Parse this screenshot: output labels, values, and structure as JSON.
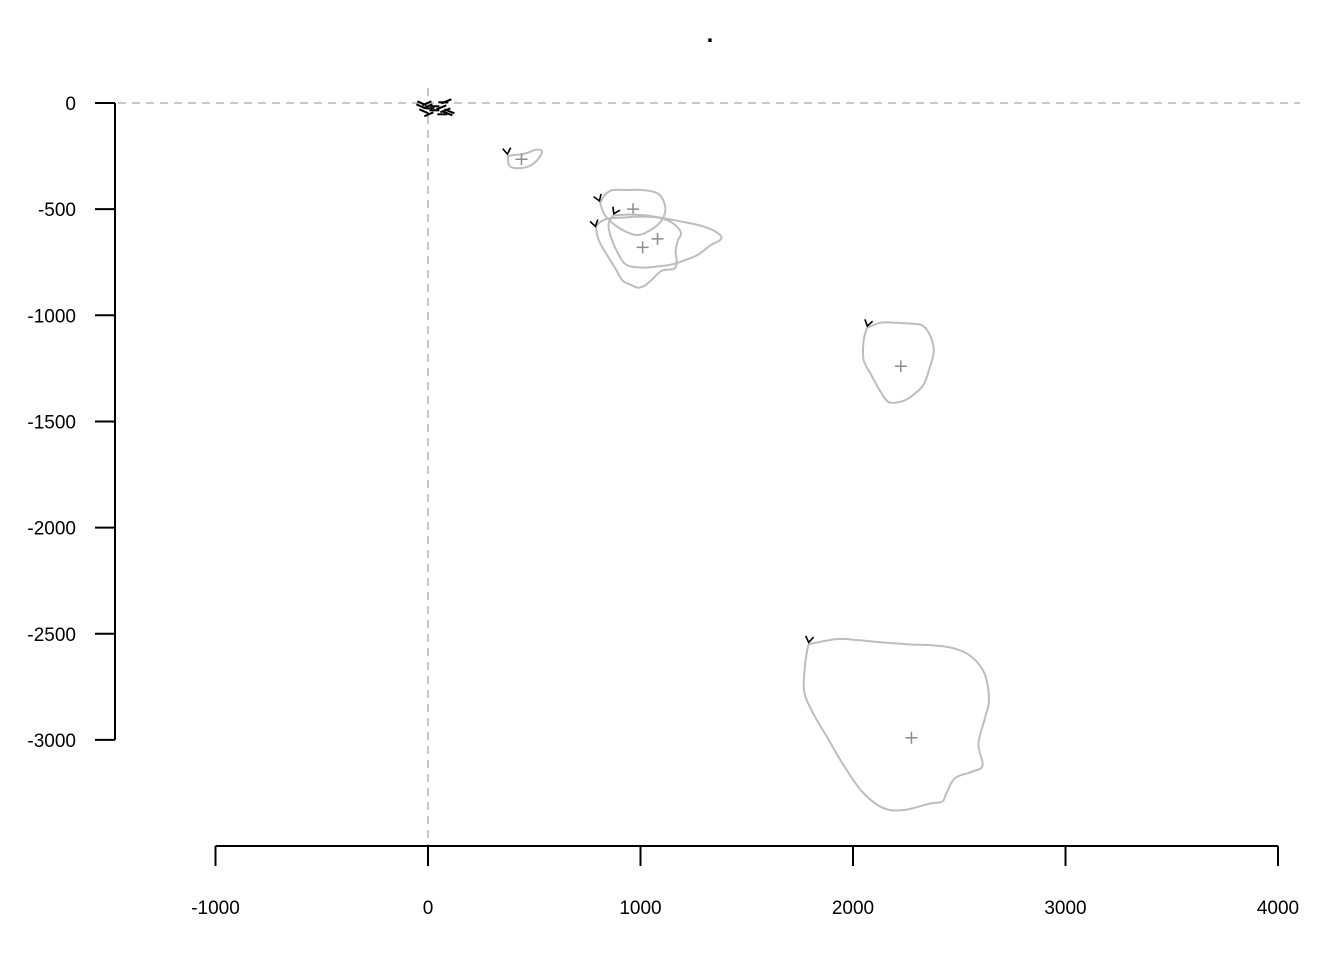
{
  "chart_data": {
    "type": "scatter",
    "title": ".",
    "xlabel": "",
    "ylabel": "",
    "xlim": [
      -1000,
      4000
    ],
    "ylim": [
      -3350,
      0
    ],
    "x_ticks": [
      -1000,
      0,
      1000,
      2000,
      3000,
      4000
    ],
    "y_ticks": [
      0,
      -500,
      -1000,
      -1500,
      -2000,
      -2500,
      -3000
    ],
    "x_tick_labels": [
      "-1000",
      "0",
      "1000",
      "2000",
      "3000",
      "4000"
    ],
    "y_tick_labels": [
      "0",
      "-500",
      "-1000",
      "-1500",
      "-2000",
      "-2500",
      "-3000"
    ],
    "reference_lines": {
      "x": 0,
      "y": 0,
      "style": "dashed"
    },
    "grid": false,
    "colors": {
      "outline": "#bdbdbd",
      "center": "#8c8c8c",
      "arrow": "#000000",
      "reference": "#c8c8c8"
    },
    "origin_cluster": {
      "center": [
        30,
        -25
      ]
    },
    "loops": [
      {
        "center": [
          440,
          -265
        ],
        "start": [
          375,
          -250
        ],
        "outline": [
          [
            375,
            -250
          ],
          [
            380,
            -290
          ],
          [
            400,
            -305
          ],
          [
            450,
            -305
          ],
          [
            490,
            -290
          ],
          [
            525,
            -255
          ],
          [
            535,
            -225
          ],
          [
            505,
            -220
          ],
          [
            475,
            -232
          ],
          [
            440,
            -242
          ],
          [
            405,
            -245
          ],
          [
            375,
            -250
          ]
        ]
      },
      {
        "center": [
          965,
          -500
        ],
        "start": [
          810,
          -470
        ],
        "outline": [
          [
            810,
            -470
          ],
          [
            830,
            -525
          ],
          [
            880,
            -575
          ],
          [
            940,
            -610
          ],
          [
            1000,
            -620
          ],
          [
            1080,
            -575
          ],
          [
            1115,
            -520
          ],
          [
            1110,
            -465
          ],
          [
            1080,
            -425
          ],
          [
            1010,
            -410
          ],
          [
            935,
            -410
          ],
          [
            870,
            -410
          ],
          [
            835,
            -430
          ],
          [
            810,
            -470
          ]
        ]
      },
      {
        "center": [
          1080,
          -640
        ],
        "start": [
          870,
          -530
        ],
        "outline": [
          [
            870,
            -530
          ],
          [
            850,
            -570
          ],
          [
            860,
            -630
          ],
          [
            890,
            -700
          ],
          [
            930,
            -760
          ],
          [
            1000,
            -775
          ],
          [
            1080,
            -770
          ],
          [
            1150,
            -760
          ],
          [
            1210,
            -740
          ],
          [
            1270,
            -715
          ],
          [
            1330,
            -670
          ],
          [
            1380,
            -640
          ],
          [
            1360,
            -610
          ],
          [
            1290,
            -580
          ],
          [
            1200,
            -560
          ],
          [
            1120,
            -545
          ],
          [
            1030,
            -530
          ],
          [
            950,
            -525
          ],
          [
            870,
            -530
          ]
        ]
      },
      {
        "center": [
          1010,
          -680
        ],
        "start": [
          790,
          -590
        ],
        "outline": [
          [
            790,
            -590
          ],
          [
            805,
            -650
          ],
          [
            845,
            -720
          ],
          [
            885,
            -785
          ],
          [
            915,
            -835
          ],
          [
            950,
            -855
          ],
          [
            990,
            -870
          ],
          [
            1020,
            -860
          ],
          [
            1050,
            -835
          ],
          [
            1100,
            -790
          ],
          [
            1160,
            -780
          ],
          [
            1170,
            -740
          ],
          [
            1165,
            -700
          ],
          [
            1175,
            -650
          ],
          [
            1190,
            -610
          ],
          [
            1150,
            -565
          ],
          [
            1085,
            -540
          ],
          [
            995,
            -535
          ],
          [
            915,
            -540
          ],
          [
            845,
            -545
          ],
          [
            805,
            -565
          ],
          [
            790,
            -590
          ]
        ]
      },
      {
        "center": [
          2225,
          -1240
        ],
        "start": [
          2065,
          -1060
        ],
        "outline": [
          [
            2065,
            -1060
          ],
          [
            2050,
            -1120
          ],
          [
            2050,
            -1210
          ],
          [
            2085,
            -1280
          ],
          [
            2130,
            -1360
          ],
          [
            2170,
            -1410
          ],
          [
            2230,
            -1405
          ],
          [
            2270,
            -1385
          ],
          [
            2330,
            -1330
          ],
          [
            2360,
            -1250
          ],
          [
            2380,
            -1170
          ],
          [
            2365,
            -1100
          ],
          [
            2330,
            -1050
          ],
          [
            2280,
            -1040
          ],
          [
            2200,
            -1035
          ],
          [
            2130,
            -1035
          ],
          [
            2065,
            -1060
          ]
        ]
      },
      {
        "center": [
          2275,
          -2990
        ],
        "start": [
          1790,
          -2550
        ],
        "outline": [
          [
            1790,
            -2550
          ],
          [
            1775,
            -2640
          ],
          [
            1770,
            -2770
          ],
          [
            1810,
            -2870
          ],
          [
            1880,
            -2990
          ],
          [
            1950,
            -3110
          ],
          [
            2040,
            -3240
          ],
          [
            2140,
            -3320
          ],
          [
            2240,
            -3330
          ],
          [
            2360,
            -3300
          ],
          [
            2420,
            -3290
          ],
          [
            2440,
            -3250
          ],
          [
            2480,
            -3180
          ],
          [
            2560,
            -3150
          ],
          [
            2610,
            -3120
          ],
          [
            2590,
            -3020
          ],
          [
            2620,
            -2900
          ],
          [
            2640,
            -2810
          ],
          [
            2620,
            -2690
          ],
          [
            2560,
            -2610
          ],
          [
            2480,
            -2570
          ],
          [
            2380,
            -2555
          ],
          [
            2260,
            -2550
          ],
          [
            2130,
            -2540
          ],
          [
            2020,
            -2530
          ],
          [
            1920,
            -2525
          ],
          [
            1790,
            -2550
          ]
        ]
      }
    ]
  }
}
